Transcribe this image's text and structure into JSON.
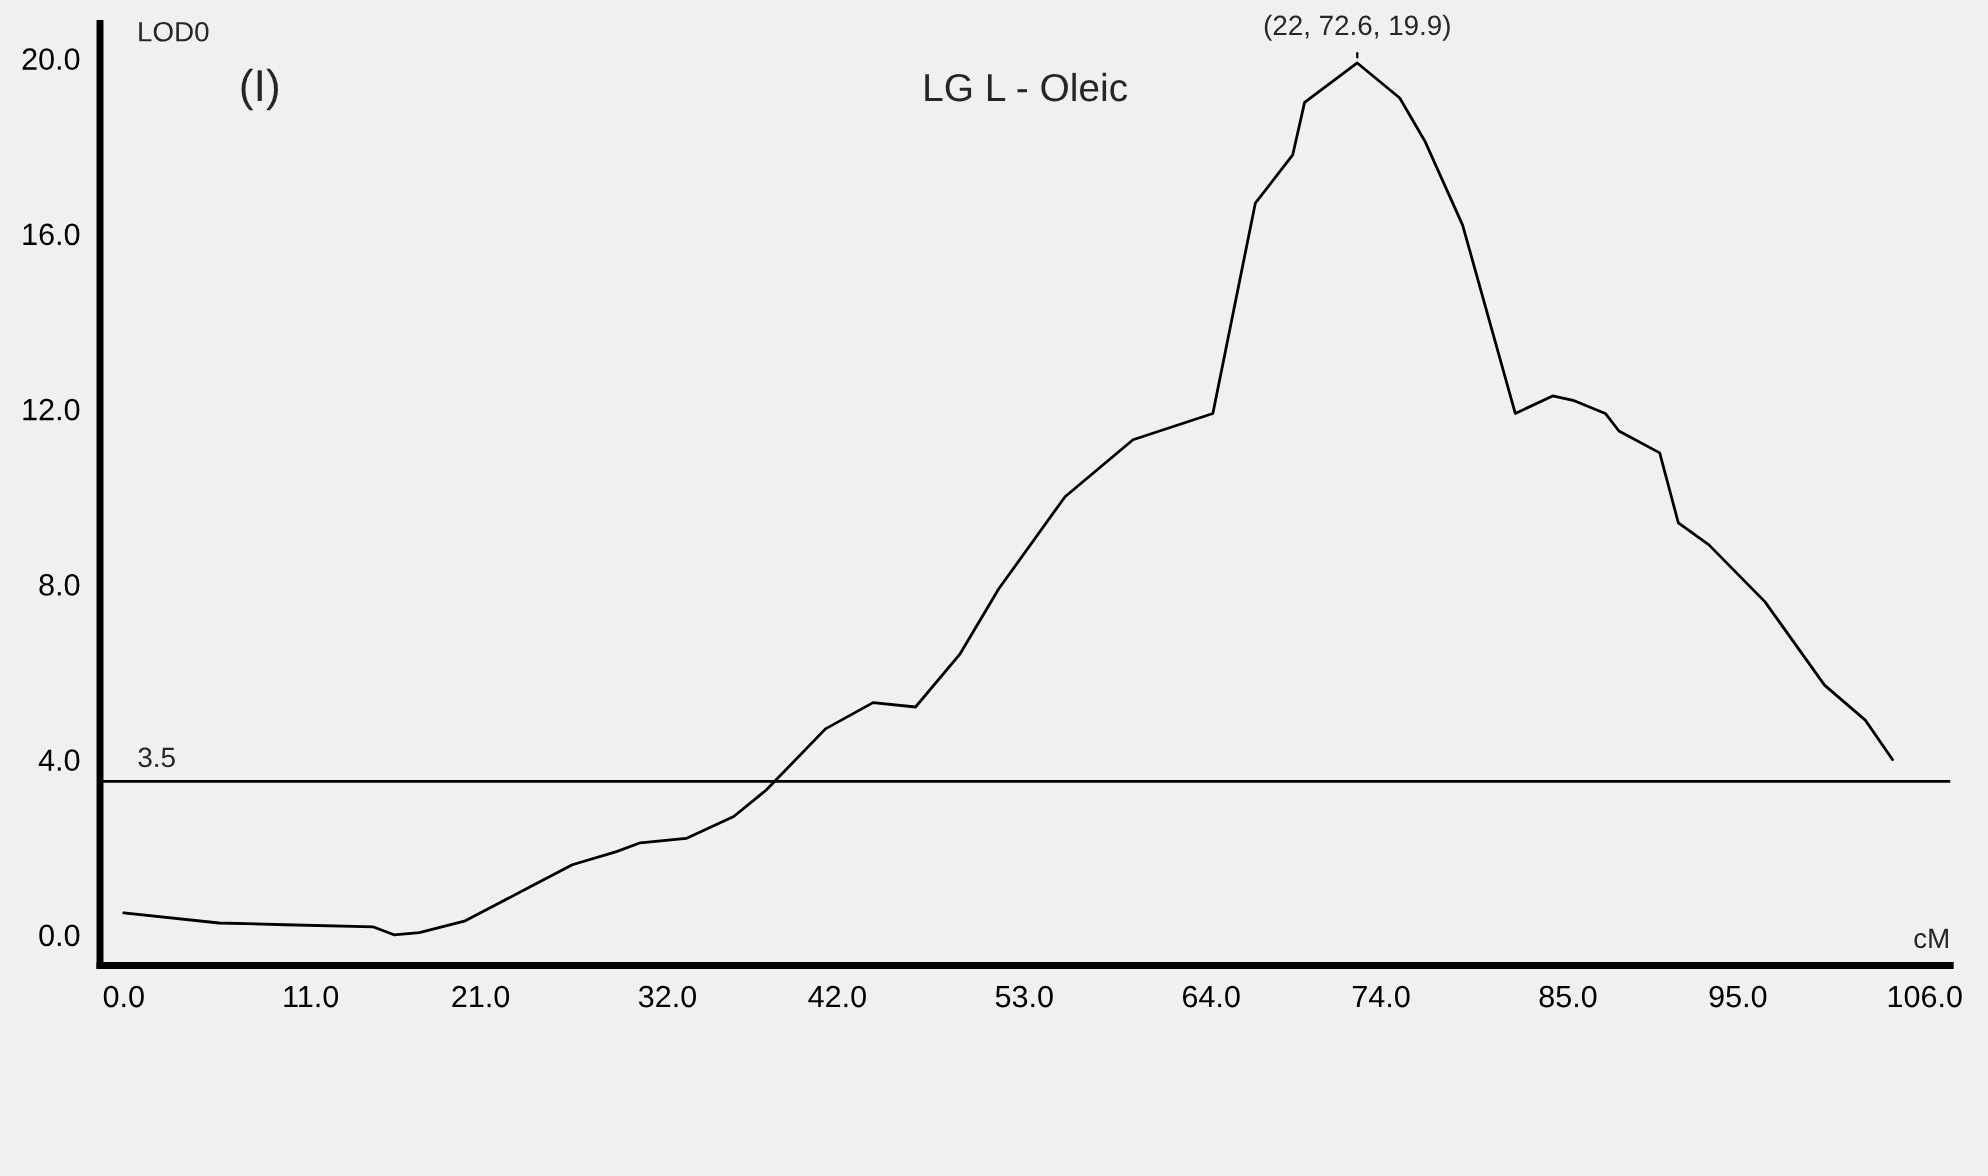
{
  "chart_data": {
    "type": "line",
    "title": "LG L - Oleic",
    "xlabel": "cM",
    "ylabel": "LOD0",
    "x": [
      0,
      5.6,
      9.5,
      14.7,
      15.9,
      17.4,
      20.1,
      23.7,
      26.4,
      29.0,
      30.4,
      33.1,
      35.9,
      37.8,
      41.3,
      44.1,
      46.6,
      49.2,
      51.5,
      55.4,
      59.4,
      64.1,
      66.6,
      68.8,
      69.5,
      72.6,
      75.1,
      76.6,
      78.8,
      81.9,
      84.1,
      85.3,
      87.2,
      88.0,
      90.4,
      91.5,
      93.3,
      96.6,
      100.1,
      102.5,
      104.1
    ],
    "series": [
      {
        "color": "#000000",
        "values": [
          0.5,
          0.27,
          0.23,
          0.18,
          0.0,
          0.05,
          0.32,
          1.05,
          1.6,
          1.9,
          2.1,
          2.2,
          2.7,
          3.3,
          4.7,
          5.3,
          5.2,
          6.4,
          7.9,
          10.0,
          11.3,
          11.9,
          16.7,
          17.8,
          19.0,
          19.9,
          19.1,
          18.1,
          16.2,
          11.9,
          12.3,
          12.2,
          11.9,
          11.5,
          11.0,
          9.4,
          8.9,
          7.6,
          5.7,
          4.9,
          4.0
        ]
      }
    ],
    "xlim": [
      -1.4,
      107.5
    ],
    "ylim": [
      -0.7,
      20.8
    ],
    "xticks": [
      {
        "value": 0,
        "label": "0.0"
      },
      {
        "value": 11,
        "label": "11.0"
      },
      {
        "value": 21,
        "label": "21.0"
      },
      {
        "value": 32,
        "label": "32.0"
      },
      {
        "value": 42,
        "label": "42.0"
      },
      {
        "value": 53,
        "label": "53.0"
      },
      {
        "value": 64,
        "label": "64.0"
      },
      {
        "value": 74,
        "label": "74.0"
      },
      {
        "value": 85,
        "label": "85.0"
      },
      {
        "value": 95,
        "label": "95.0"
      },
      {
        "value": 106,
        "label": "106.0"
      }
    ],
    "yticks": [
      {
        "value": 0,
        "label": "0.0"
      },
      {
        "value": 4,
        "label": "4.0"
      },
      {
        "value": 8,
        "label": "8.0"
      },
      {
        "value": 12,
        "label": "12.0"
      },
      {
        "value": 16,
        "label": "16.0"
      },
      {
        "value": 20,
        "label": "20.0"
      }
    ],
    "ref_lines": [
      {
        "axis": "y",
        "value": 3.5,
        "label": "3.5",
        "color": "#000000"
      }
    ],
    "annotations": [
      "(I)",
      {
        "text": "(22, 72.6, 19.9)",
        "x": 72.6,
        "y": 19.9
      }
    ],
    "grid": false,
    "legend": false,
    "marker": "none",
    "line_style": "solid"
  }
}
